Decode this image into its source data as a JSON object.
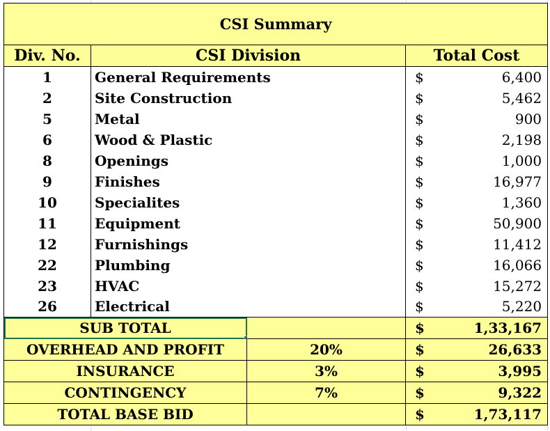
{
  "title": "CSI Summary",
  "headers": {
    "div_no": "Div. No.",
    "division": "CSI Division",
    "total_cost": "Total Cost"
  },
  "currency": "$",
  "items": [
    {
      "div": "1",
      "name": "General Requirements",
      "cost": "6,400"
    },
    {
      "div": "2",
      "name": "Site Construction",
      "cost": "5,462"
    },
    {
      "div": "5",
      "name": "Metal",
      "cost": "900"
    },
    {
      "div": "6",
      "name": "Wood & Plastic",
      "cost": "2,198"
    },
    {
      "div": "8",
      "name": "Openings",
      "cost": "1,000"
    },
    {
      "div": "9",
      "name": "Finishes",
      "cost": "16,977"
    },
    {
      "div": "10",
      "name": "Specialites",
      "cost": "1,360"
    },
    {
      "div": "11",
      "name": "Equipment",
      "cost": "50,900"
    },
    {
      "div": "12",
      "name": "Furnishings",
      "cost": "11,412"
    },
    {
      "div": "22",
      "name": "Plumbing",
      "cost": "16,066"
    },
    {
      "div": "23",
      "name": "HVAC",
      "cost": "15,272"
    },
    {
      "div": "26",
      "name": "Electrical",
      "cost": "5,220"
    }
  ],
  "summary": [
    {
      "label": "SUB TOTAL",
      "pct": "",
      "amount": "1,33,167"
    },
    {
      "label": "OVERHEAD AND PROFIT",
      "pct": "20%",
      "amount": "26,633"
    },
    {
      "label": "INSURANCE",
      "pct": "3%",
      "amount": "3,995"
    },
    {
      "label": "CONTINGENCY",
      "pct": "7%",
      "amount": "9,322"
    },
    {
      "label": "TOTAL BASE BID",
      "pct": "",
      "amount": "1,73,117"
    }
  ],
  "colors": {
    "highlight": "#ffff99",
    "selection": "#217346",
    "gridline": "#d9d9d9"
  }
}
